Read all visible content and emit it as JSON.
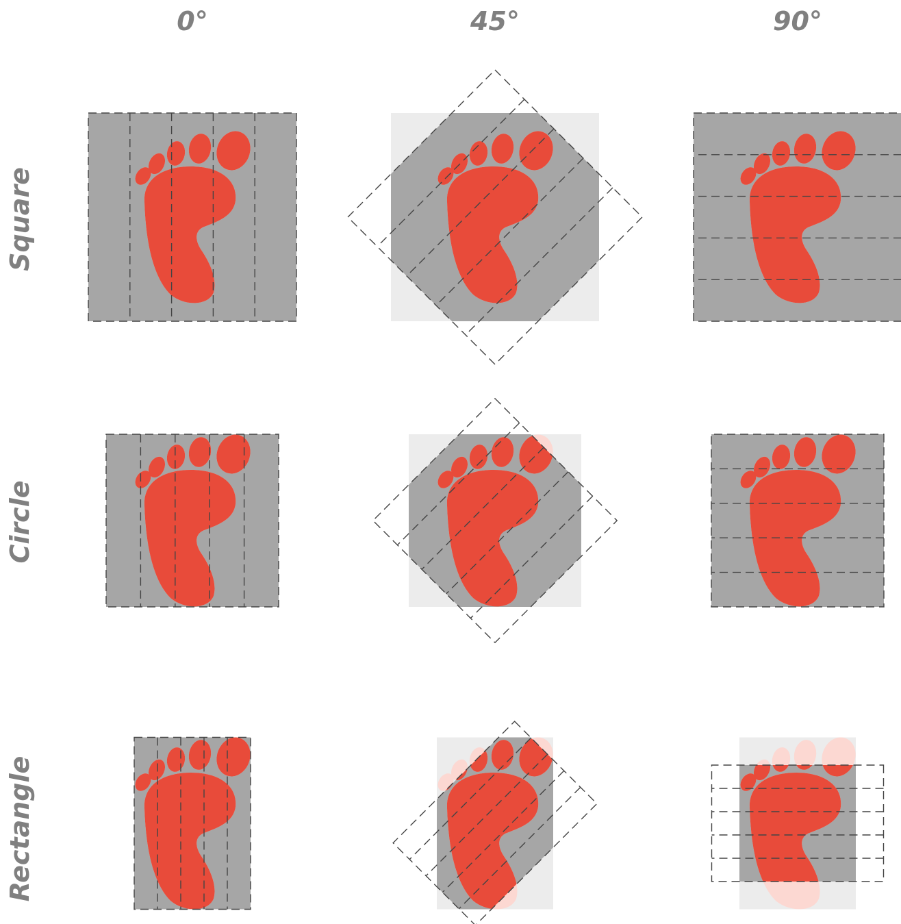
{
  "columns": [
    "0°",
    "45°",
    "90°"
  ],
  "rows": [
    "Square",
    "Circle",
    "Rectangle"
  ]
}
